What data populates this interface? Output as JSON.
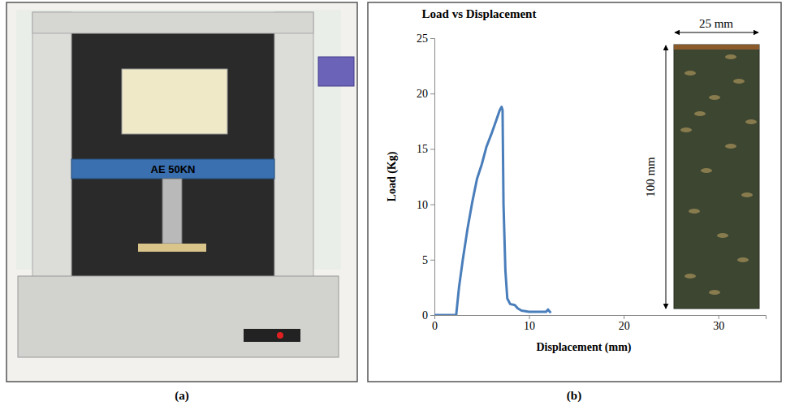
{
  "chart_data": {
    "type": "line",
    "title": "Load vs Displacement",
    "x_label": "Displacement (mm)",
    "y_label": "Load (Kg)",
    "x": [
      0,
      2.3,
      2.6,
      3.0,
      3.5,
      4.0,
      4.5,
      5.0,
      5.5,
      6.0,
      6.5,
      6.9,
      7.1,
      7.2,
      7.3,
      7.5,
      7.7,
      8.0,
      8.5,
      8.8,
      9.2,
      10.0,
      11.0,
      11.8,
      12.0,
      12.2,
      12.3
    ],
    "values": [
      0,
      0,
      2.5,
      5.0,
      7.8,
      10.2,
      12.3,
      13.6,
      15.2,
      16.3,
      17.5,
      18.5,
      18.8,
      18.5,
      10,
      4,
      1.5,
      1.0,
      0.9,
      0.6,
      0.4,
      0.3,
      0.3,
      0.3,
      0.5,
      0.3,
      0.2
    ],
    "color": "#4a7ebb",
    "xlim": [
      0,
      35
    ],
    "xticks": [
      0,
      10,
      20,
      30
    ],
    "ylim": [
      0,
      25
    ],
    "yticks": [
      0,
      5,
      10,
      15,
      20,
      25
    ],
    "grid": false
  },
  "panels": {
    "a": {
      "label": "(a)",
      "machine_label": "AE 50KN"
    },
    "b": {
      "label": "(b)",
      "specimen": {
        "width_label": "25 mm",
        "height_label": "100 mm"
      }
    }
  }
}
